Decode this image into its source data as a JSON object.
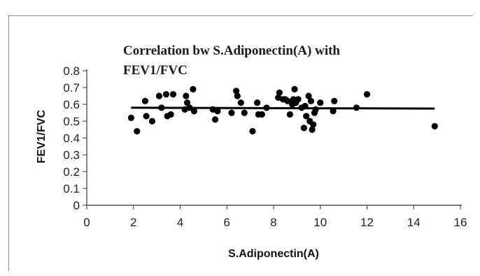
{
  "chart_data": {
    "type": "scatter",
    "title_lines": [
      "Correlation bw S.Adiponectin(A) with",
      "FEV1/FVC"
    ],
    "xlabel": "S.Adiponectin(A)",
    "ylabel": "FEV1/FVC",
    "xlim": [
      0,
      16
    ],
    "ylim": [
      0,
      0.8
    ],
    "x_ticks": [
      "0",
      "2",
      "4",
      "6",
      "8",
      "10",
      "12",
      "14",
      "16"
    ],
    "y_ticks": [
      "0",
      "0.1",
      "0.2",
      "0.3",
      "0.4",
      "0.5",
      "0.6",
      "0.7",
      "0.8"
    ],
    "grid": false,
    "legend": "none",
    "trendline": {
      "x": [
        1.9,
        14.9
      ],
      "y": [
        0.58,
        0.575
      ]
    },
    "colors": {
      "points": "#000000",
      "line": "#000000"
    },
    "points": [
      [
        1.9,
        0.52
      ],
      [
        2.15,
        0.44
      ],
      [
        2.5,
        0.62
      ],
      [
        2.55,
        0.53
      ],
      [
        2.8,
        0.5
      ],
      [
        3.1,
        0.65
      ],
      [
        3.2,
        0.58
      ],
      [
        3.4,
        0.66
      ],
      [
        3.45,
        0.53
      ],
      [
        3.6,
        0.54
      ],
      [
        3.7,
        0.66
      ],
      [
        4.2,
        0.57
      ],
      [
        4.25,
        0.65
      ],
      [
        4.3,
        0.61
      ],
      [
        4.4,
        0.58
      ],
      [
        4.55,
        0.69
      ],
      [
        4.6,
        0.56
      ],
      [
        5.4,
        0.57
      ],
      [
        5.5,
        0.51
      ],
      [
        5.6,
        0.56
      ],
      [
        6.2,
        0.55
      ],
      [
        6.4,
        0.68
      ],
      [
        6.45,
        0.65
      ],
      [
        6.6,
        0.61
      ],
      [
        6.75,
        0.55
      ],
      [
        7.1,
        0.44
      ],
      [
        7.3,
        0.61
      ],
      [
        7.35,
        0.54
      ],
      [
        7.5,
        0.54
      ],
      [
        7.7,
        0.58
      ],
      [
        8.2,
        0.64
      ],
      [
        8.25,
        0.67
      ],
      [
        8.4,
        0.63
      ],
      [
        8.5,
        0.63
      ],
      [
        8.6,
        0.62
      ],
      [
        8.7,
        0.54
      ],
      [
        8.8,
        0.6
      ],
      [
        8.85,
        0.63
      ],
      [
        8.9,
        0.69
      ],
      [
        8.95,
        0.61
      ],
      [
        9.05,
        0.63
      ],
      [
        9.2,
        0.58
      ],
      [
        9.3,
        0.46
      ],
      [
        9.35,
        0.59
      ],
      [
        9.4,
        0.53
      ],
      [
        9.5,
        0.65
      ],
      [
        9.55,
        0.5
      ],
      [
        9.6,
        0.62
      ],
      [
        9.65,
        0.45
      ],
      [
        9.7,
        0.48
      ],
      [
        9.75,
        0.55
      ],
      [
        9.8,
        0.57
      ],
      [
        10.0,
        0.61
      ],
      [
        10.55,
        0.56
      ],
      [
        10.6,
        0.62
      ],
      [
        11.55,
        0.58
      ],
      [
        12.0,
        0.66
      ],
      [
        14.9,
        0.47
      ]
    ]
  }
}
